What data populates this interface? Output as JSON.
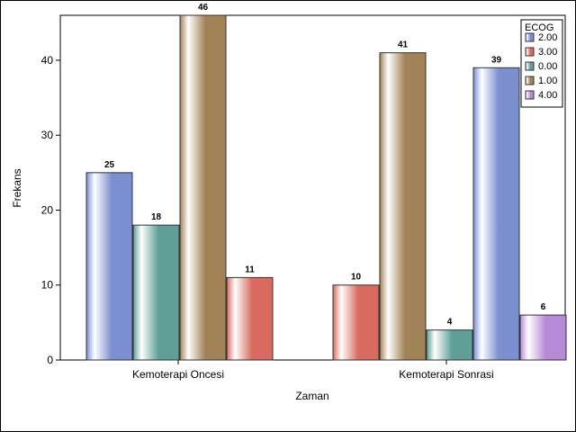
{
  "chart_data": {
    "type": "bar",
    "xlabel": "Zaman",
    "ylabel": "Frekans",
    "ylim": [
      0,
      46
    ],
    "yticks": [
      "0",
      "10",
      "20",
      "30",
      "40"
    ],
    "legend": {
      "title": "ECOG",
      "placement": "top-right",
      "entries": [
        {
          "label": "2.00",
          "color": "#7b8fd1"
        },
        {
          "label": "3.00",
          "color": "#d86a5f"
        },
        {
          "label": "0.00",
          "color": "#5f9f98"
        },
        {
          "label": "1.00",
          "color": "#a28358"
        },
        {
          "label": "4.00",
          "color": "#b78ad8"
        }
      ]
    },
    "groups": [
      {
        "category": "Kemoterapi Oncesi",
        "bars": [
          {
            "series": "2.00",
            "value": 25,
            "label": "25"
          },
          {
            "series": "0.00",
            "value": 18,
            "label": "18"
          },
          {
            "series": "1.00",
            "value": 46,
            "label": "46"
          },
          {
            "series": "3.00",
            "value": 11,
            "label": "11"
          }
        ]
      },
      {
        "category": "Kemoterapi Sonrasi",
        "bars": [
          {
            "series": "3.00",
            "value": 10,
            "label": "10"
          },
          {
            "series": "1.00",
            "value": 41,
            "label": "41"
          },
          {
            "series": "0.00",
            "value": 4,
            "label": "4"
          },
          {
            "series": "2.00",
            "value": 39,
            "label": "39"
          },
          {
            "series": "4.00",
            "value": 6,
            "label": "6"
          }
        ]
      }
    ]
  }
}
